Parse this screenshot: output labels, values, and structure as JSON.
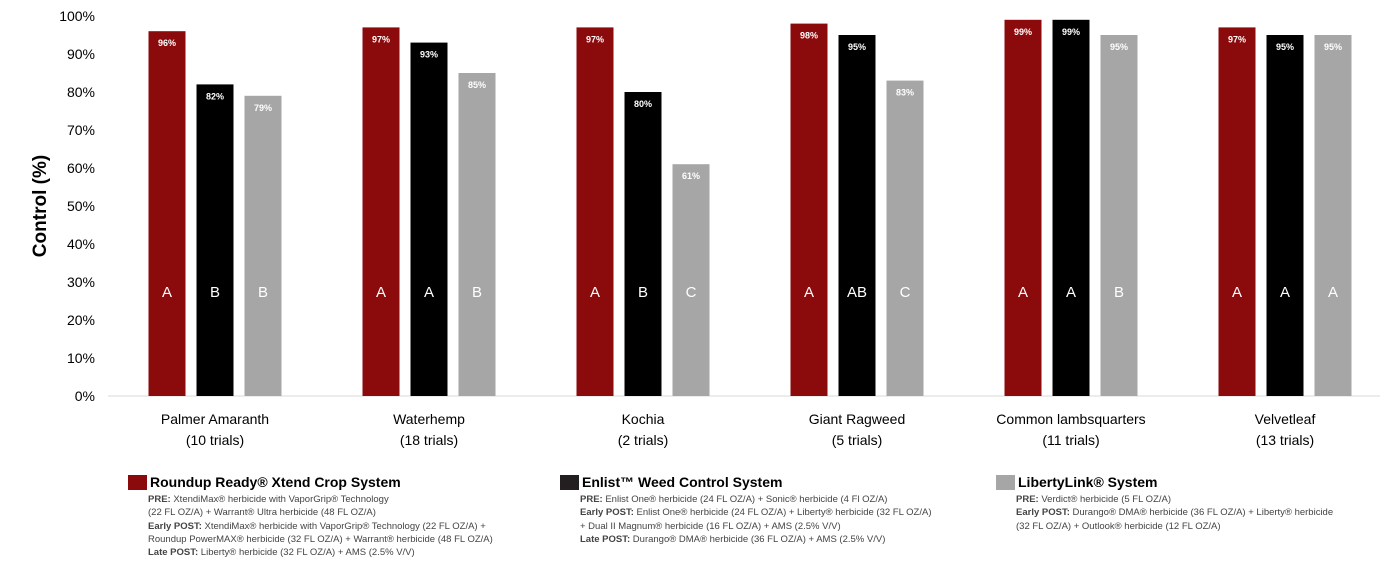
{
  "chart_data": {
    "type": "bar",
    "title": "",
    "xlabel": "",
    "ylabel": "Control (%)",
    "ylim": [
      0,
      100
    ],
    "yticks": [
      "0%",
      "10%",
      "20%",
      "30%",
      "40%",
      "50%",
      "60%",
      "70%",
      "80%",
      "90%",
      "100%"
    ],
    "grid": false,
    "categories": [
      {
        "name": "Palmer Amaranth",
        "trials": "(10 trials)"
      },
      {
        "name": "Waterhemp",
        "trials": "(18 trials)"
      },
      {
        "name": "Kochia",
        "trials": "(2 trials)"
      },
      {
        "name": "Giant Ragweed",
        "trials": "(5 trials)"
      },
      {
        "name": "Common lambsquarters",
        "trials": "(11 trials)"
      },
      {
        "name": "Velvetleaf",
        "trials": "(13 trials)"
      }
    ],
    "series": [
      {
        "name": "Roundup Ready® Xtend Crop System",
        "color": "#8b0a0b",
        "values": [
          96,
          97,
          97,
          98,
          99,
          97
        ],
        "labels": [
          "96%",
          "97%",
          "97%",
          "98%",
          "99%",
          "97%"
        ],
        "groups": [
          "A",
          "A",
          "A",
          "A",
          "A",
          "A"
        ]
      },
      {
        "name": "Enlist™ Weed Control System",
        "color": "#000000",
        "values": [
          82,
          93,
          80,
          95,
          99,
          95
        ],
        "labels": [
          "82%",
          "93%",
          "80%",
          "95%",
          "99%",
          "95%"
        ],
        "groups": [
          "B",
          "A",
          "B",
          "AB",
          "A",
          "A"
        ]
      },
      {
        "name": "LibertyLink® System",
        "color": "#a6a6a6",
        "values": [
          79,
          85,
          61,
          83,
          95,
          95
        ],
        "labels": [
          "79%",
          "85%",
          "61%",
          "83%",
          "95%",
          "95%"
        ],
        "groups": [
          "B",
          "B",
          "C",
          "C",
          "B",
          "A"
        ]
      }
    ]
  },
  "legend": [
    {
      "title": "Roundup Ready® Xtend Crop System",
      "color": "#8b0a0b",
      "lines": [
        {
          "bold": "PRE:",
          "text": " XtendiMax® herbicide with VaporGrip® Technology"
        },
        {
          "bold": "",
          "text": "(22 FL OZ/A) + Warrant® Ultra herbicide (48 FL OZ/A)"
        },
        {
          "bold": "Early POST:",
          "text": " XtendiMax® herbicide with VaporGrip® Technology (22 FL OZ/A) +"
        },
        {
          "bold": "",
          "text": "Roundup PowerMAX® herbicide (32 FL OZ/A) + Warrant® herbicide (48 FL OZ/A)"
        },
        {
          "bold": "Late POST:",
          "text": " Liberty® herbicide (32 FL OZ/A) + AMS (2.5% V/V)"
        }
      ]
    },
    {
      "title": "Enlist™ Weed Control System",
      "color": "#231f20",
      "lines": [
        {
          "bold": "PRE:",
          "text": " Enlist One® herbicide (24 FL OZ/A) + Sonic® herbicide (4 Fl OZ/A)"
        },
        {
          "bold": "Early POST:",
          "text": " Enlist One® herbicide (24 FL OZ/A) + Liberty® herbicide (32 FL OZ/A)"
        },
        {
          "bold": "",
          "text": "+ Dual II Magnum® herbicide (16 FL OZ/A) + AMS (2.5% V/V)"
        },
        {
          "bold": "Late POST:",
          "text": " Durango® DMA® herbicide (36 FL OZ/A) + AMS (2.5% V/V)"
        }
      ]
    },
    {
      "title": "LibertyLink® System",
      "color": "#a6a6a6",
      "lines": [
        {
          "bold": "PRE:",
          "text": " Verdict® herbicide (5 FL OZ/A)"
        },
        {
          "bold": "Early POST:",
          "text": " Durango® DMA® herbicide (36 FL OZ/A) + Liberty® herbicide"
        },
        {
          "bold": "",
          "text": "(32 FL OZ/A) + Outlook® herbicide (12 FL OZ/A)"
        }
      ]
    }
  ]
}
